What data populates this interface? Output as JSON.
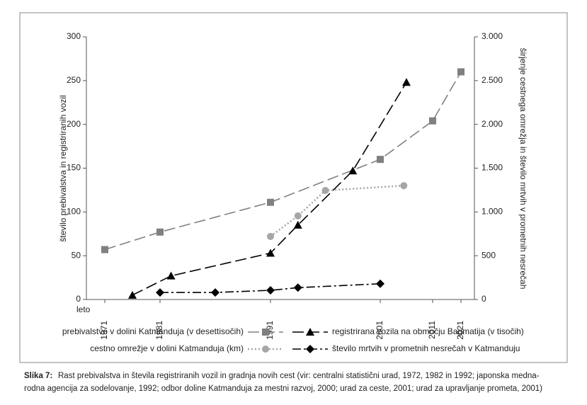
{
  "chart_data": {
    "type": "line",
    "y_label": "število prebivalstva in registriranih vozil",
    "y2_label": "širjenje cestnega omrežja in število mrtvih v prometnih nesrečah",
    "x_label": "leto",
    "xticks": [
      1971,
      1981,
      1991,
      2001,
      2011,
      2021
    ],
    "ylim": [
      0,
      300
    ],
    "yticks": [
      0,
      50,
      100,
      150,
      200,
      250,
      300
    ],
    "y2lim": [
      0,
      3000
    ],
    "y2ticks": [
      0,
      500,
      {
        "value": 1000,
        "label": "1.000"
      },
      {
        "value": 1500,
        "label": "1.500"
      },
      {
        "value": 2000,
        "label": "2.000"
      },
      {
        "value": 2500,
        "label": "2.500"
      },
      {
        "value": 3000,
        "label": "3.000"
      }
    ],
    "series": [
      {
        "name": "prebivalstvo v dolini Katmanduja (v desettisočih)",
        "color": "#808080",
        "marker": "square",
        "line": "dashed",
        "x": [
          1971,
          1981,
          1991,
          2001,
          2011,
          2021
        ],
        "values": [
          57,
          77,
          111,
          160,
          204,
          260
        ]
      },
      {
        "name": "registrirana vozila na območju Bagmatija (v tisočih)",
        "color": "#000000",
        "marker": "triangle",
        "line": "dashed",
        "axis": "y2",
        "x": [
          1976,
          1982,
          1991,
          1993.5,
          1998.5,
          2006
        ],
        "values": [
          50,
          270,
          530,
          850,
          1470,
          2480
        ]
      },
      {
        "name": "cestno omrežje v dolini Katmanduja (km)",
        "color": "#a6a6a6",
        "marker": "circle",
        "line": "dotted",
        "axis": "y2",
        "x": [
          1991,
          1993.5,
          1996,
          2005.5
        ],
        "values": [
          720,
          955,
          1245,
          1300
        ]
      },
      {
        "name": "število mrtvih v prometnih nesrečah v Katmanduju",
        "color": "#000000",
        "marker": "diamond",
        "line": "dashdot",
        "axis": "y2",
        "x": [
          1981,
          1986,
          1991,
          1993.5,
          2001
        ],
        "values": [
          80,
          80,
          105,
          135,
          180
        ]
      }
    ],
    "caption_label": "Slika 7:",
    "caption": [
      "Rast prebivalstva in števila registriranih vozil in gradnja novih cest (vir: centralni statistični urad, 1972, 1982 in 1992; japonska medna-",
      "rodna agencija za sodelovanje, 1992; odbor doline Katmanduja za mestni razvoj, 2000; urad za ceste, 2001; urad za upravljanje prometa, 2001)"
    ]
  }
}
